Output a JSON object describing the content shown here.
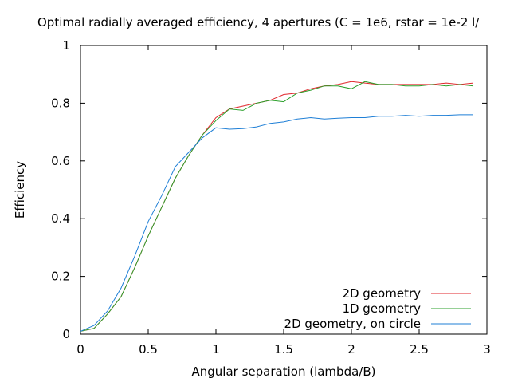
{
  "chart_data": {
    "type": "line",
    "title": "Optimal radially averaged efficiency, 4 apertures (C = 1e6, rstar = 1e-2 l/",
    "xlabel": "Angular separation (lambda/B)",
    "ylabel": "Efficiency",
    "xlim": [
      0,
      3
    ],
    "ylim": [
      0,
      1
    ],
    "xticks": [
      "0",
      "0.5",
      "1",
      "1.5",
      "2",
      "2.5",
      "3"
    ],
    "xtick_values": [
      0,
      0.5,
      1,
      1.5,
      2,
      2.5,
      3
    ],
    "yticks": [
      "0",
      "0.2",
      "0.4",
      "0.6",
      "0.8",
      "1"
    ],
    "ytick_values": [
      0,
      0.2,
      0.4,
      0.6,
      0.8,
      1
    ],
    "grid": false,
    "legend_position": "bottom-right",
    "x": [
      0,
      0.1,
      0.2,
      0.3,
      0.4,
      0.5,
      0.6,
      0.7,
      0.8,
      0.9,
      1.0,
      1.1,
      1.2,
      1.3,
      1.4,
      1.5,
      1.6,
      1.7,
      1.8,
      1.9,
      2.0,
      2.1,
      2.2,
      2.3,
      2.4,
      2.5,
      2.6,
      2.7,
      2.8,
      2.9
    ],
    "series": [
      {
        "name": "2D geometry",
        "color": "#e0262b",
        "values": [
          0.01,
          0.02,
          0.07,
          0.13,
          0.23,
          0.34,
          0.44,
          0.54,
          0.62,
          0.69,
          0.75,
          0.78,
          0.79,
          0.8,
          0.81,
          0.83,
          0.835,
          0.85,
          0.86,
          0.865,
          0.875,
          0.87,
          0.865,
          0.865,
          0.865,
          0.865,
          0.865,
          0.87,
          0.865,
          0.87
        ]
      },
      {
        "name": "1D geometry",
        "color": "#2ca02c",
        "values": [
          0.01,
          0.02,
          0.07,
          0.13,
          0.23,
          0.34,
          0.44,
          0.54,
          0.62,
          0.69,
          0.74,
          0.78,
          0.775,
          0.8,
          0.81,
          0.805,
          0.835,
          0.845,
          0.86,
          0.86,
          0.85,
          0.875,
          0.865,
          0.865,
          0.86,
          0.86,
          0.865,
          0.86,
          0.865,
          0.86
        ]
      },
      {
        "name": "2D geometry, on circle",
        "color": "#1f7fd6",
        "values": [
          0.01,
          0.03,
          0.08,
          0.16,
          0.27,
          0.39,
          0.48,
          0.58,
          0.63,
          0.68,
          0.715,
          0.71,
          0.712,
          0.718,
          0.73,
          0.735,
          0.745,
          0.75,
          0.745,
          0.748,
          0.75,
          0.75,
          0.755,
          0.755,
          0.758,
          0.755,
          0.758,
          0.758,
          0.76,
          0.76
        ]
      }
    ]
  }
}
